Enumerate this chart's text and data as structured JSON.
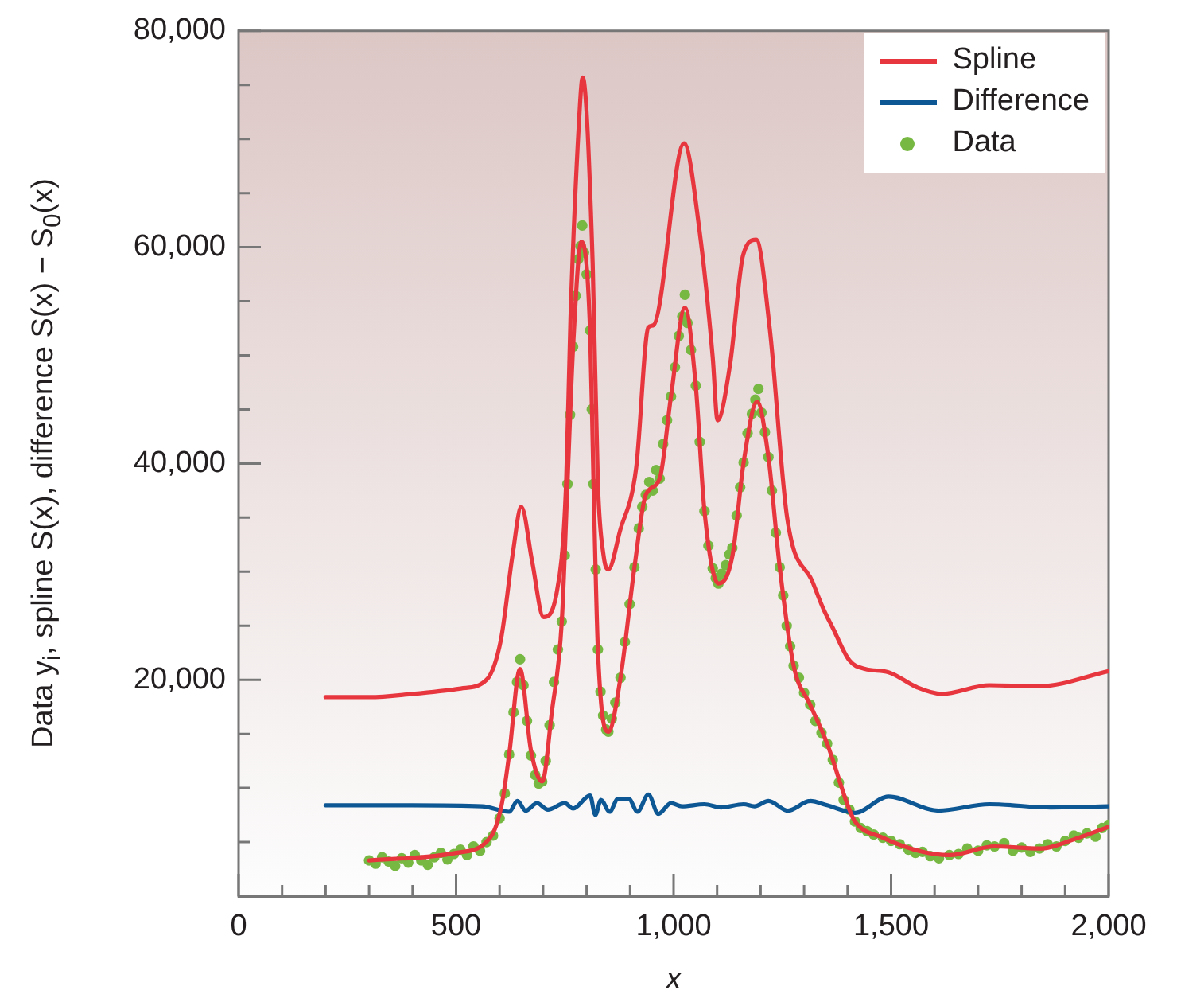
{
  "chart_data": {
    "type": "line",
    "xlabel": "x",
    "ylabel": "Data y$_{i}$, spline S(x), difference S(x) − S$_{0}$(x)",
    "xlim": [
      0,
      2000
    ],
    "ylim": [
      0,
      80000
    ],
    "xticks": [
      0,
      {
        "value": 100,
        "label": null
      },
      {
        "value": 200,
        "label": null
      },
      {
        "value": 300,
        "label": null
      },
      {
        "value": 400,
        "label": null
      },
      500,
      {
        "value": 600,
        "label": null
      },
      {
        "value": 700,
        "label": null
      },
      {
        "value": 800,
        "label": null
      },
      {
        "value": 900,
        "label": null
      },
      {
        "value": 1000,
        "label": "1,000"
      },
      {
        "value": 1100,
        "label": null
      },
      {
        "value": 1200,
        "label": null
      },
      {
        "value": 1300,
        "label": null
      },
      {
        "value": 1400,
        "label": null
      },
      {
        "value": 1500,
        "label": "1,500"
      },
      {
        "value": 1600,
        "label": null
      },
      {
        "value": 1700,
        "label": null
      },
      {
        "value": 1800,
        "label": null
      },
      {
        "value": 1900,
        "label": null
      },
      {
        "value": 2000,
        "label": "2,000"
      }
    ],
    "yticks": [
      {
        "value": 0,
        "label": null
      },
      {
        "value": 5000,
        "label": null
      },
      {
        "value": 10000,
        "label": null
      },
      {
        "value": 15000,
        "label": null
      },
      {
        "value": 20000,
        "label": "20,000"
      },
      {
        "value": 25000,
        "label": null
      },
      {
        "value": 30000,
        "label": null
      },
      {
        "value": 35000,
        "label": null
      },
      {
        "value": 40000,
        "label": "40,000"
      },
      {
        "value": 45000,
        "label": null
      },
      {
        "value": 50000,
        "label": null
      },
      {
        "value": 55000,
        "label": null
      },
      {
        "value": 60000,
        "label": "60,000"
      },
      {
        "value": 65000,
        "label": null
      },
      {
        "value": 70000,
        "label": null
      },
      {
        "value": 75000,
        "label": null
      },
      {
        "value": 80000,
        "label": "80,000"
      }
    ],
    "legend": "top right",
    "line_style": "solid",
    "series": [
      {
        "name": "Spline",
        "color": "#e8363f",
        "x": [
          200,
          300,
          400,
          511,
          570,
          603,
          630,
          650,
          675,
          701,
          731,
          753,
          763,
          782,
          791,
          814,
          826,
          839,
          850,
          877,
          914,
          942,
          954,
          1024,
          1060,
          1090,
          1101,
          1130,
          1160,
          1190,
          1221,
          1261,
          1320,
          1345,
          1366,
          1404,
          1440,
          1494,
          1560,
          1616,
          1726,
          1841,
          2000
        ],
        "values": [
          18400,
          18400,
          18700,
          19200,
          20000,
          23700,
          31600,
          36000,
          30900,
          25800,
          28000,
          38200,
          53400,
          71200,
          75700,
          58500,
          38100,
          31500,
          30200,
          33800,
          39600,
          52600,
          52800,
          69600,
          61400,
          49800,
          44000,
          49200,
          59300,
          60700,
          52500,
          35000,
          29000,
          26500,
          24800,
          21800,
          21000,
          20700,
          19300,
          18700,
          19500,
          19400,
          20800
        ]
      },
      {
        "name": "Difference",
        "color": "#0d5794",
        "x": [
          200,
          400,
          560,
          622,
          641,
          660,
          686,
          711,
          750,
          769,
          808,
          820,
          833,
          853,
          872,
          897,
          917,
          942,
          965,
          994,
          1019,
          1071,
          1109,
          1161,
          1186,
          1218,
          1263,
          1314,
          1353,
          1417,
          1494,
          1609,
          1726,
          1867,
          2000
        ],
        "values": [
          8400,
          8400,
          8300,
          7800,
          8800,
          7900,
          8600,
          8000,
          8600,
          8100,
          9300,
          7500,
          8900,
          7800,
          9000,
          9000,
          7800,
          9400,
          7600,
          8600,
          8300,
          8500,
          8200,
          8500,
          8300,
          8800,
          7900,
          8800,
          8400,
          7700,
          9200,
          7900,
          8500,
          8200,
          8300
        ]
      },
      {
        "color": "#e8363f",
        "x": [
          300,
          500,
          580,
          605,
          622,
          647,
          672,
          698,
          720,
          743,
          756,
          769,
          788,
          808,
          816,
          826,
          850,
          878,
          910,
          936,
          968,
          994,
          1026,
          1051,
          1071,
          1103,
          1135,
          1161,
          1192,
          1218,
          1244,
          1276,
          1314,
          1353,
          1404,
          1417,
          1481,
          1572,
          1634,
          1738,
          1841,
          1931,
          2000
        ],
        "values": [
          3300,
          4000,
          5500,
          8500,
          13100,
          21000,
          13500,
          10600,
          17000,
          25400,
          38100,
          50800,
          60500,
          52300,
          38100,
          22800,
          15200,
          20200,
          30400,
          37100,
          38600,
          46200,
          54400,
          47200,
          35600,
          28900,
          31400,
          40100,
          45700,
          40600,
          30400,
          21300,
          17700,
          14100,
          8000,
          6900,
          5400,
          4100,
          3800,
          4600,
          4400,
          5400,
          6400
        ]
      },
      {
        "name": "Data",
        "type": "scatter",
        "marker": "circle",
        "color": "#77b843",
        "x": [
          300,
          315,
          330,
          345,
          360,
          375,
          390,
          405,
          420,
          435,
          450,
          465,
          480,
          495,
          510,
          525,
          540,
          555,
          570,
          585,
          600,
          612,
          622,
          632,
          640,
          647,
          655,
          663,
          672,
          682,
          690,
          698,
          706,
          715,
          725,
          734,
          743,
          750,
          756,
          762,
          769,
          775,
          781,
          786,
          790,
          794,
          800,
          808,
          812,
          816,
          821,
          826,
          832,
          838,
          845,
          850,
          858,
          866,
          878,
          888,
          899,
          910,
          920,
          928,
          936,
          944,
          952,
          960,
          968,
          976,
          985,
          994,
          1003,
          1012,
          1020,
          1026,
          1032,
          1040,
          1051,
          1060,
          1071,
          1080,
          1090,
          1097,
          1103,
          1110,
          1120,
          1128,
          1135,
          1145,
          1153,
          1161,
          1170,
          1180,
          1188,
          1195,
          1202,
          1210,
          1218,
          1226,
          1235,
          1244,
          1252,
          1260,
          1268,
          1276,
          1288,
          1300,
          1314,
          1326,
          1340,
          1353,
          1366,
          1380,
          1391,
          1404,
          1417,
          1430,
          1445,
          1460,
          1481,
          1500,
          1520,
          1540,
          1556,
          1572,
          1590,
          1610,
          1634,
          1655,
          1675,
          1700,
          1720,
          1738,
          1760,
          1780,
          1800,
          1820,
          1841,
          1860,
          1880,
          1900,
          1920,
          1931,
          1950,
          1970,
          1985,
          2000
        ],
        "values": [
          3300,
          3000,
          3600,
          3200,
          2800,
          3500,
          3100,
          3800,
          3300,
          2900,
          3600,
          4000,
          3400,
          3900,
          4300,
          3800,
          4600,
          4200,
          5000,
          5600,
          7200,
          9500,
          13100,
          17000,
          19800,
          21900,
          19500,
          16200,
          13000,
          11200,
          10400,
          10600,
          12500,
          15800,
          19800,
          22800,
          25400,
          31500,
          38100,
          44500,
          50800,
          55500,
          58900,
          60100,
          62000,
          59500,
          57500,
          52300,
          45000,
          38100,
          30200,
          22800,
          18900,
          16700,
          15400,
          15200,
          16400,
          17900,
          20200,
          23500,
          27000,
          30400,
          34000,
          36000,
          37100,
          38300,
          37500,
          39400,
          38600,
          41800,
          44000,
          46200,
          48900,
          51800,
          53600,
          55600,
          53000,
          50500,
          47200,
          42000,
          35600,
          32400,
          30300,
          29400,
          28900,
          29800,
          30600,
          31600,
          32200,
          35200,
          37800,
          40100,
          42800,
          44600,
          45900,
          46900,
          44700,
          42900,
          40600,
          37500,
          33600,
          30400,
          27800,
          25000,
          23100,
          21300,
          20200,
          18800,
          17700,
          16200,
          15100,
          14100,
          12600,
          10500,
          8900,
          8000,
          6900,
          6300,
          6000,
          5700,
          5400,
          5100,
          4800,
          4300,
          4000,
          4100,
          3700,
          3500,
          3800,
          3900,
          4400,
          4200,
          4700,
          4600,
          4900,
          4200,
          4500,
          4100,
          4400,
          4800,
          4600,
          5100,
          5600,
          5400,
          5800,
          5500,
          6300,
          6600
        ]
      }
    ]
  }
}
